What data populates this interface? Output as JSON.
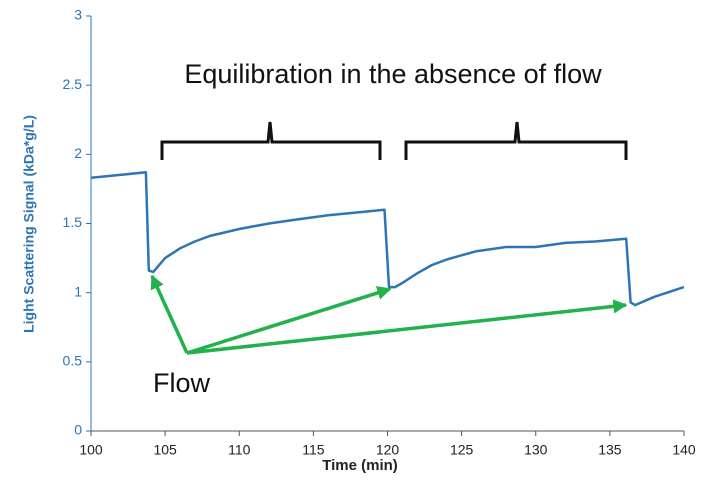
{
  "chart_data": {
    "type": "line",
    "x_label": "Time (min)",
    "y_label": "Light Scattering Signal (kDa*g/L)",
    "annotations": [
      "Equilibration in the absence of flow",
      "Flow"
    ],
    "x": [
      100,
      103.7,
      103.9,
      104.2,
      105,
      106,
      107,
      108,
      110,
      112,
      114,
      116,
      118,
      119.8,
      120.1,
      120.5,
      121,
      122,
      123,
      124,
      125,
      126,
      128,
      130,
      132,
      134,
      136.1,
      136.4,
      136.7,
      138,
      140
    ],
    "series": [
      {
        "color": "#2e75b6",
        "values": [
          1.83,
          1.87,
          1.16,
          1.15,
          1.25,
          1.32,
          1.37,
          1.41,
          1.46,
          1.5,
          1.53,
          1.56,
          1.58,
          1.6,
          1.04,
          1.04,
          1.07,
          1.14,
          1.2,
          1.24,
          1.27,
          1.3,
          1.33,
          1.33,
          1.36,
          1.37,
          1.39,
          0.93,
          0.91,
          0.97,
          1.04
        ]
      }
    ],
    "xlim": [
      100,
      140
    ],
    "ylim": [
      0,
      3
    ],
    "xticks": [
      100,
      105,
      110,
      115,
      120,
      125,
      130,
      135,
      140
    ],
    "yticks": [
      0,
      0.5,
      1,
      1.5,
      2,
      2.5,
      3
    ]
  }
}
